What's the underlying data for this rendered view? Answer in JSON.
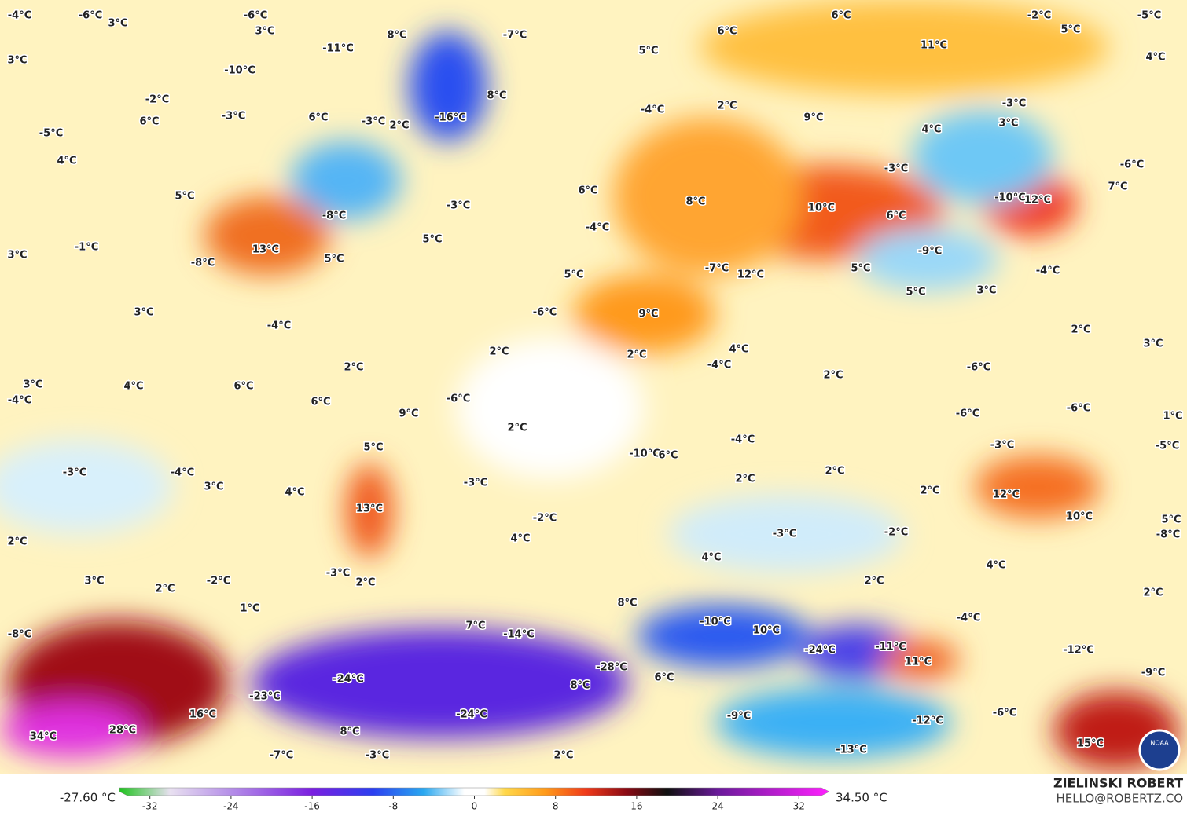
{
  "map": {
    "labels": [
      "-4°C",
      "-6°C",
      "3°C",
      "-6°C",
      "3°C",
      "8°C",
      "-7°C",
      "6°C",
      "6°C",
      "-2°C",
      "5°C",
      "-5°C",
      "-11°C",
      "5°C",
      "11°C",
      "3°C",
      "4°C",
      "-10°C",
      "8°C",
      "-2°C",
      "-3°C",
      "6°C",
      "-3°C",
      "-16°C",
      "2°C",
      "-4°C",
      "2°C",
      "9°C",
      "-3°C",
      "3°C",
      "4°C",
      "6°C",
      "-5°C",
      "4°C",
      "-3°C",
      "-6°C",
      "7°C",
      "5°C",
      "-8°C",
      "-3°C",
      "6°C",
      "8°C",
      "10°C",
      "6°C",
      "-10°C",
      "12°C",
      "3°C",
      "-1°C",
      "13°C",
      "5°C",
      "-8°C",
      "5°C",
      "-4°C",
      "-9°C",
      "5°C",
      "-4°C",
      "5°C",
      "-7°C",
      "12°C",
      "5°C",
      "3°C",
      "3°C",
      "-4°C",
      "-6°C",
      "9°C",
      "2°C",
      "3°C",
      "2°C",
      "4°C",
      "-4°C",
      "2°C",
      "2°C",
      "2°C",
      "-6°C",
      "3°C",
      "4°C",
      "6°C",
      "-4°C",
      "6°C",
      "9°C",
      "-6°C",
      "-6°C",
      "-6°C",
      "1°C",
      "2°C",
      "-4°C",
      "5°C",
      "-10°C",
      "6°C",
      "-3°C",
      "-5°C",
      "-3°C",
      "-4°C",
      "-3°C",
      "2°C",
      "2°C",
      "3°C",
      "4°C",
      "2°C",
      "12°C",
      "13°C",
      "10°C",
      "5°C",
      "-8°C",
      "-2°C",
      "4°C",
      "-3°C",
      "-2°C",
      "2°C",
      "4°C",
      "4°C",
      "-3°C",
      "2°C",
      "3°C",
      "2°C",
      "-2°C",
      "2°C",
      "2°C",
      "8°C",
      "1°C",
      "-4°C",
      "-10°C",
      "10°C",
      "7°C",
      "-14°C",
      "-8°C",
      "-24°C",
      "-11°C",
      "-12°C",
      "11°C",
      "-28°C",
      "6°C",
      "-24°C",
      "8°C",
      "-9°C",
      "-23°C",
      "16°C",
      "-24°C",
      "-9°C",
      "-12°C",
      "-6°C",
      "34°C",
      "28°C",
      "8°C",
      "15°C",
      "-13°C",
      "-7°C",
      "-3°C",
      "2°C"
    ],
    "logo_text": "NOAA"
  },
  "colorbar": {
    "min_label": "-27.60 °C",
    "max_label": "34.50 °C",
    "lim": [
      -35,
      35
    ],
    "ticks": [
      -32,
      -24,
      -16,
      -8,
      0,
      8,
      16,
      24,
      32
    ],
    "stops": [
      {
        "value": -35,
        "color": "#1fc21f"
      },
      {
        "value": -30,
        "color": "#e8e0f0"
      },
      {
        "value": -24,
        "color": "#b58ee8"
      },
      {
        "value": -16,
        "color": "#7a1fe0"
      },
      {
        "value": -10,
        "color": "#2b3ff0"
      },
      {
        "value": -5,
        "color": "#2aa8f0"
      },
      {
        "value": -1,
        "color": "#ffffff"
      },
      {
        "value": 1,
        "color": "#ffffff"
      },
      {
        "value": 3,
        "color": "#ffd84a"
      },
      {
        "value": 7,
        "color": "#ff9a1a"
      },
      {
        "value": 11,
        "color": "#f03a1a"
      },
      {
        "value": 15,
        "color": "#8a0a14"
      },
      {
        "value": 19,
        "color": "#101010"
      },
      {
        "value": 24,
        "color": "#6a1a9a"
      },
      {
        "value": 35,
        "color": "#ff20ff"
      }
    ]
  },
  "credit": {
    "name": "ZIELINSKI ROBERT",
    "email": "HELLO@ROBERTZ.CO"
  }
}
